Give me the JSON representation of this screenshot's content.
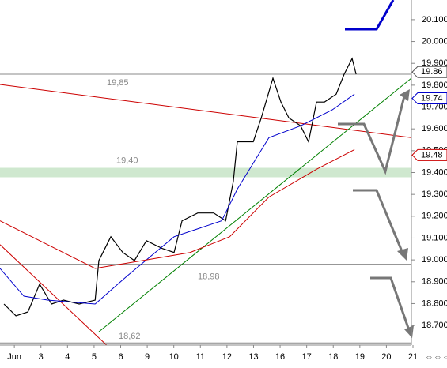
{
  "chart_data": {
    "type": "line",
    "categories": [
      "Jun",
      "3",
      "4",
      "5",
      "6",
      "9",
      "10",
      "11",
      "12",
      "13",
      "16",
      "17",
      "18",
      "19",
      "20",
      "21"
    ],
    "xlim": [
      -0.54,
      14.94
    ],
    "ylim": [
      18.61,
      20.19
    ],
    "yticks": [
      {
        "value": 18.7,
        "label": "18.700"
      },
      {
        "value": 18.8,
        "label": "18.800"
      },
      {
        "value": 18.9,
        "label": "18.900"
      },
      {
        "value": 19.0,
        "label": "19.000"
      },
      {
        "value": 19.1,
        "label": "19.100"
      },
      {
        "value": 19.2,
        "label": "19.200"
      },
      {
        "value": 19.3,
        "label": "19.300"
      },
      {
        "value": 19.4,
        "label": "19.400"
      },
      {
        "value": 19.5,
        "label": "19.500"
      },
      {
        "value": 19.6,
        "label": "19.600"
      },
      {
        "value": 19.7,
        "label": "19.700"
      },
      {
        "value": 19.8,
        "label": "19.800"
      },
      {
        "value": 19.9,
        "label": "19.900"
      },
      {
        "value": 20.0,
        "label": "20.000"
      },
      {
        "value": 20.1,
        "label": "20.100"
      }
    ],
    "series": [
      {
        "color": "#000000",
        "x": [
          -0.39,
          0.06,
          0.51,
          0.95,
          1.4,
          1.85,
          2.44,
          3.04,
          3.18,
          3.63,
          4.08,
          4.52,
          4.97,
          5.57,
          6.01,
          6.31,
          6.9,
          7.5,
          7.95,
          8.24,
          8.39,
          8.99,
          9.29,
          9.73,
          10.03,
          10.33,
          10.77,
          11.07,
          11.37,
          11.67,
          12.11,
          12.41,
          12.71,
          12.86
        ],
        "values": [
          18.798,
          18.744,
          18.762,
          18.889,
          18.798,
          18.816,
          18.798,
          18.816,
          18.997,
          19.106,
          19.034,
          18.997,
          19.088,
          19.052,
          19.034,
          19.179,
          19.215,
          19.215,
          19.179,
          19.36,
          19.541,
          19.541,
          19.65,
          19.832,
          19.723,
          19.65,
          19.614,
          19.541,
          19.723,
          19.723,
          19.759,
          19.85,
          19.922,
          19.85
        ]
      },
      {
        "color": "#0000cc",
        "x": [
          -0.54,
          0.36,
          1.25,
          3.04,
          4.23,
          6.01,
          7.8,
          8.39,
          9.58,
          10.77,
          11.96,
          12.8
        ],
        "values": [
          18.961,
          18.834,
          18.816,
          18.798,
          18.925,
          19.106,
          19.179,
          19.324,
          19.56,
          19.614,
          19.687,
          19.759
        ]
      },
      {
        "color": "#cc0000",
        "x": [
          -0.54,
          1.25,
          3.04,
          4.82,
          6.61,
          8.1,
          9.58,
          11.37,
          12.8
        ],
        "values": [
          19.179,
          19.07,
          18.961,
          18.997,
          19.034,
          19.106,
          19.288,
          19.415,
          19.505
        ]
      }
    ],
    "trendlines": [
      {
        "color": "#cc0000",
        "x": [
          -0.54,
          14.94
        ],
        "values": [
          19.803,
          19.56
        ]
      },
      {
        "color": "#008000",
        "x": [
          3.18,
          14.94
        ],
        "values": [
          18.671,
          19.832
        ]
      },
      {
        "color": "#cc0000",
        "x": [
          -0.54,
          3.48
        ],
        "values": [
          19.07,
          18.609
        ]
      }
    ],
    "levels": [
      {
        "value": 19.85,
        "label": "19,85"
      },
      {
        "value": 19.4,
        "label": "19,40"
      },
      {
        "value": 18.98,
        "label": "18,98"
      },
      {
        "value": 18.62,
        "label": "18,62"
      }
    ],
    "flags": [
      {
        "value": 19.86,
        "color": "#555555"
      },
      {
        "value": 19.74,
        "color": "#0000cc"
      },
      {
        "value": 19.48,
        "color": "#cc0000"
      }
    ]
  }
}
